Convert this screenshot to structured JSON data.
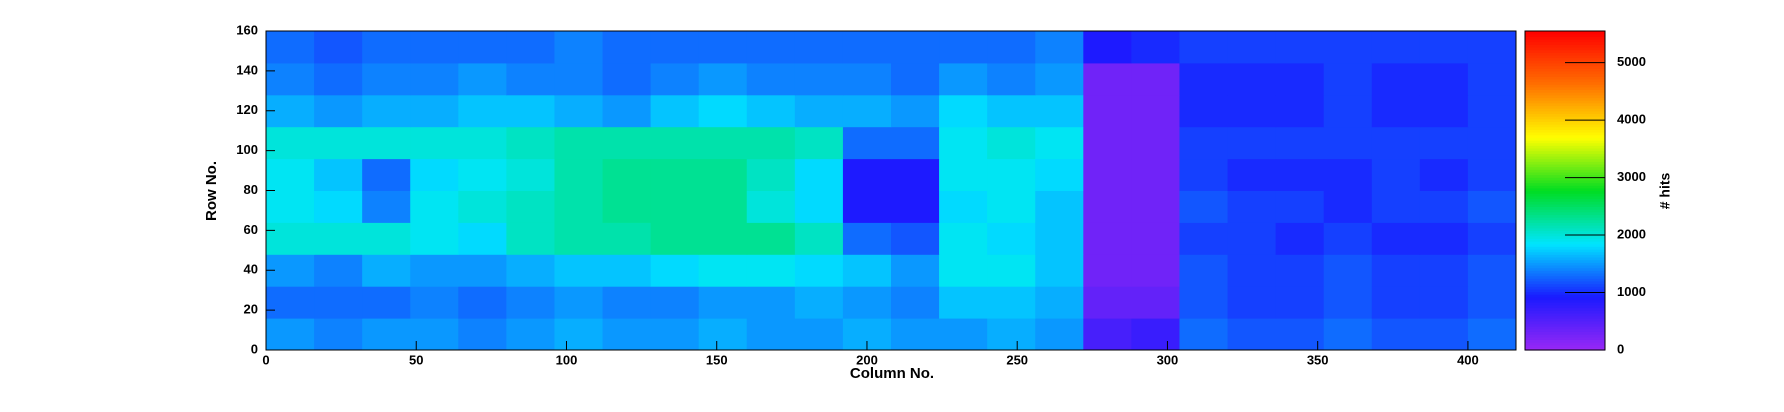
{
  "chart_data": {
    "type": "heatmap",
    "x_label": "Column No.",
    "y_label": "Row No.",
    "z_label": "# hits",
    "xlim": [
      0,
      416
    ],
    "ylim": [
      0,
      160
    ],
    "zlim": [
      0,
      5550
    ],
    "xticks": [
      0,
      50,
      100,
      150,
      200,
      250,
      300,
      350,
      400
    ],
    "yticks": [
      0,
      20,
      40,
      60,
      80,
      100,
      120,
      140,
      160
    ],
    "zticks": [
      0,
      1000,
      2000,
      3000,
      4000,
      5000
    ],
    "colorscale": [
      "#9a28f5",
      "#1a1aff",
      "#00e5ff",
      "#00dd22",
      "#ffff00",
      "#ff7000",
      "#ff0000"
    ],
    "xbins": [
      0,
      16,
      32,
      48,
      64,
      80,
      96,
      112,
      128,
      144,
      160,
      176,
      192,
      208,
      224,
      240,
      256,
      272,
      288,
      304,
      320,
      336,
      352,
      368,
      384,
      400,
      416
    ],
    "ybins": [
      0,
      16,
      32,
      48,
      64,
      80,
      96,
      112,
      128,
      144,
      160
    ],
    "z": [
      [
        1500,
        1400,
        1500,
        1500,
        1400,
        1500,
        1600,
        1500,
        1500,
        1600,
        1500,
        1500,
        1600,
        1500,
        1500,
        1600,
        1500,
        600,
        700,
        1300,
        1200,
        1200,
        1300,
        1200,
        1200,
        1300
      ],
      [
        1300,
        1300,
        1300,
        1400,
        1300,
        1400,
        1500,
        1400,
        1400,
        1500,
        1500,
        1600,
        1500,
        1400,
        1700,
        1700,
        1600,
        400,
        400,
        1200,
        1100,
        1100,
        1200,
        1100,
        1100,
        1200
      ],
      [
        1500,
        1400,
        1600,
        1500,
        1500,
        1600,
        1700,
        1700,
        1800,
        1900,
        1900,
        1800,
        1700,
        1500,
        1900,
        1900,
        1700,
        300,
        300,
        1200,
        1100,
        1100,
        1200,
        1100,
        1100,
        1200
      ],
      [
        2000,
        2000,
        2000,
        1900,
        1800,
        2100,
        2200,
        2200,
        2300,
        2300,
        2300,
        2100,
        1300,
        1200,
        1900,
        1800,
        1700,
        300,
        300,
        1100,
        1100,
        1000,
        1100,
        1000,
        1000,
        1100
      ],
      [
        1900,
        1800,
        1400,
        1900,
        2000,
        2100,
        2200,
        2300,
        2300,
        2300,
        2000,
        1800,
        900,
        900,
        1800,
        1900,
        1700,
        300,
        300,
        1200,
        1100,
        1100,
        1000,
        1100,
        1100,
        1200
      ],
      [
        1900,
        1700,
        1300,
        1800,
        1900,
        2000,
        2200,
        2300,
        2300,
        2300,
        2100,
        1800,
        900,
        900,
        1900,
        1900,
        1800,
        300,
        300,
        1100,
        1000,
        1000,
        1000,
        1100,
        1000,
        1100
      ],
      [
        2000,
        2000,
        2000,
        2000,
        2000,
        2100,
        2200,
        2200,
        2200,
        2200,
        2200,
        2100,
        1300,
        1300,
        1900,
        2000,
        1900,
        300,
        300,
        1100,
        1100,
        1100,
        1100,
        1100,
        1100,
        1100
      ],
      [
        1600,
        1500,
        1600,
        1600,
        1700,
        1700,
        1600,
        1500,
        1700,
        1800,
        1700,
        1600,
        1600,
        1500,
        1800,
        1700,
        1700,
        300,
        300,
        1000,
        1000,
        1000,
        1100,
        1000,
        1000,
        1100
      ],
      [
        1400,
        1300,
        1400,
        1400,
        1500,
        1400,
        1400,
        1300,
        1400,
        1500,
        1400,
        1400,
        1400,
        1300,
        1500,
        1400,
        1500,
        300,
        300,
        1000,
        1000,
        1000,
        1100,
        1000,
        1000,
        1100
      ],
      [
        1300,
        1200,
        1300,
        1300,
        1300,
        1300,
        1400,
        1300,
        1300,
        1300,
        1300,
        1300,
        1300,
        1300,
        1300,
        1300,
        1400,
        900,
        1000,
        1100,
        1100,
        1100,
        1100,
        1100,
        1100,
        1100
      ]
    ]
  }
}
